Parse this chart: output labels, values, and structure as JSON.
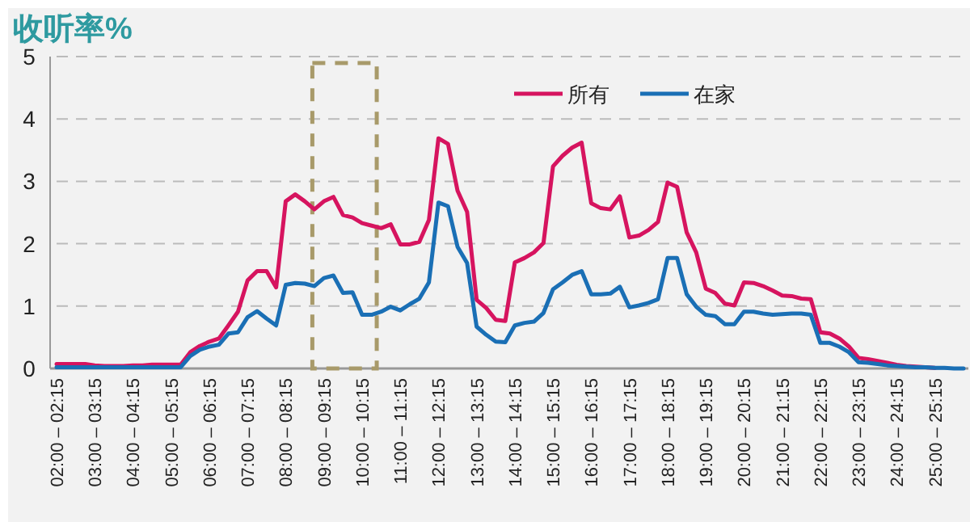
{
  "chart_data": {
    "type": "line",
    "title": "收听率%",
    "categories": [
      "02:00 – 02:15",
      null,
      null,
      null,
      "03:00 – 03:15",
      null,
      null,
      null,
      "04:00 – 04:15",
      null,
      null,
      null,
      "05:00 – 05:15",
      null,
      null,
      null,
      "06:00 – 06:15",
      null,
      null,
      null,
      "07:00 – 07:15",
      null,
      null,
      null,
      "08:00 – 08:15",
      null,
      null,
      null,
      "09:00 – 09:15",
      null,
      null,
      null,
      "10:00 – 10:15",
      null,
      null,
      null,
      "11:00 – 11:15",
      null,
      null,
      null,
      "12:00 – 12:15",
      null,
      null,
      null,
      "13:00 – 13:15",
      null,
      null,
      null,
      "14:00 – 14:15",
      null,
      null,
      null,
      "15:00 – 15:15",
      null,
      null,
      null,
      "16:00 – 16:15",
      null,
      null,
      null,
      "17:00 – 17:15",
      null,
      null,
      null,
      "18:00 – 18:15",
      null,
      null,
      null,
      "19:00 – 19:15",
      null,
      null,
      null,
      "20:00 – 20:15",
      null,
      null,
      null,
      "21:00 – 21:15",
      null,
      null,
      null,
      "22:00 – 22:15",
      null,
      null,
      null,
      "23:00 – 23:15",
      null,
      null,
      null,
      "24:00 – 24:15",
      null,
      null,
      null,
      "25:00 – 25:15",
      null,
      null,
      null
    ],
    "series": [
      {
        "name": "所有",
        "color": "#d6145f",
        "values": [
          0.07,
          0.07,
          0.07,
          0.07,
          0.05,
          0.04,
          0.04,
          0.04,
          0.05,
          0.05,
          0.06,
          0.06,
          0.06,
          0.06,
          0.26,
          0.36,
          0.43,
          0.48,
          0.69,
          0.91,
          1.41,
          1.56,
          1.56,
          1.3,
          2.68,
          2.79,
          2.68,
          2.55,
          2.68,
          2.75,
          2.46,
          2.42,
          2.33,
          2.29,
          2.25,
          2.31,
          1.99,
          1.99,
          2.03,
          2.38,
          3.69,
          3.6,
          2.85,
          2.51,
          1.1,
          0.97,
          0.78,
          0.76,
          1.7,
          1.77,
          1.86,
          2.01,
          3.24,
          3.41,
          3.54,
          3.62,
          2.65,
          2.57,
          2.55,
          2.76,
          2.1,
          2.13,
          2.22,
          2.35,
          2.98,
          2.91,
          2.18,
          1.86,
          1.28,
          1.21,
          1.04,
          1.01,
          1.38,
          1.37,
          1.32,
          1.25,
          1.17,
          1.16,
          1.12,
          1.11,
          0.58,
          0.56,
          0.48,
          0.35,
          0.17,
          0.15,
          0.12,
          0.09,
          0.06,
          0.04,
          0.03,
          0.02,
          0.01,
          null,
          null,
          null
        ]
      },
      {
        "name": "在家",
        "color": "#1a6fb5",
        "values": [
          0.02,
          0.02,
          0.02,
          0.02,
          0.02,
          0.02,
          0.02,
          0.02,
          0.02,
          0.02,
          0.02,
          0.02,
          0.02,
          0.02,
          0.2,
          0.3,
          0.35,
          0.38,
          0.56,
          0.58,
          0.82,
          0.92,
          0.8,
          0.69,
          1.34,
          1.37,
          1.36,
          1.32,
          1.45,
          1.49,
          1.21,
          1.22,
          0.86,
          0.86,
          0.91,
          0.99,
          0.93,
          1.03,
          1.12,
          1.38,
          2.66,
          2.6,
          1.95,
          1.69,
          0.67,
          0.54,
          0.43,
          0.42,
          0.69,
          0.73,
          0.75,
          0.89,
          1.27,
          1.38,
          1.5,
          1.56,
          1.19,
          1.19,
          1.2,
          1.31,
          0.98,
          1.01,
          1.05,
          1.11,
          1.77,
          1.77,
          1.19,
          0.99,
          0.86,
          0.84,
          0.71,
          0.71,
          0.91,
          0.91,
          0.88,
          0.86,
          0.87,
          0.88,
          0.88,
          0.86,
          0.41,
          0.41,
          0.35,
          0.26,
          0.1,
          0.09,
          0.07,
          0.05,
          0.04,
          0.03,
          0.02,
          0.02,
          0.01,
          0.01,
          0,
          0
        ]
      }
    ],
    "ylim": [
      0,
      5
    ],
    "yticks": [
      0,
      1,
      2,
      3,
      4,
      5
    ],
    "grid": "y",
    "legend": "top",
    "line_style": "solid"
  }
}
